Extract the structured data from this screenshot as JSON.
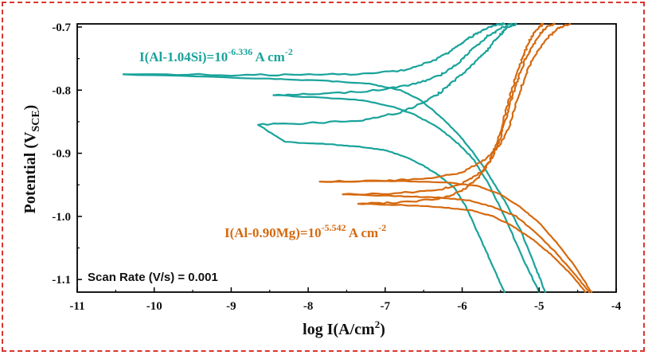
{
  "chart_data": {
    "type": "line",
    "title": "",
    "xlabel": "log I(A/cm",
    "xlabel_sup": "2",
    "xlabel_tail": ")",
    "ylabel_main": "Potential (V",
    "ylabel_sub": "SCE",
    "ylabel_tail": ")",
    "xlim": [
      -11,
      -4
    ],
    "ylim": [
      -1.12,
      -0.695
    ],
    "x_ticks": [
      "-11",
      "-10",
      "-9",
      "-8",
      "-7",
      "-6",
      "-5",
      "-4"
    ],
    "y_ticks": [
      "-0.7",
      "-0.8",
      "-0.9",
      "-1.0",
      "-1.1"
    ],
    "grid": false,
    "annotations": {
      "si": {
        "prefix": "I(Al-1.04Si)=10",
        "sup": "-6.336",
        "suffix": " A cm",
        "sup2": "-2"
      },
      "mg": {
        "prefix": "I(Al-0.90Mg)=10",
        "sup": "-5.542",
        "suffix": " A cm",
        "sup2": "-2"
      },
      "scan_rate": "Scan Rate (V/s) = 0.001"
    },
    "series": [
      {
        "group": "Al-1.04Si",
        "color": "#1aa39b",
        "cathodic": [
          [
            -5.45,
            -1.12
          ],
          [
            -5.6,
            -1.08
          ],
          [
            -5.78,
            -1.03
          ],
          [
            -5.95,
            -0.985
          ],
          [
            -6.1,
            -0.955
          ],
          [
            -6.3,
            -0.935
          ],
          [
            -6.5,
            -0.92
          ],
          [
            -6.75,
            -0.905
          ],
          [
            -7.0,
            -0.895
          ],
          [
            -7.3,
            -0.89
          ],
          [
            -7.7,
            -0.886
          ],
          [
            -8.3,
            -0.882
          ],
          [
            -8.65,
            -0.855
          ]
        ],
        "anodic": [
          [
            -8.65,
            -0.855
          ],
          [
            -8.0,
            -0.852
          ],
          [
            -7.3,
            -0.848
          ],
          [
            -6.8,
            -0.835
          ],
          [
            -6.5,
            -0.82
          ],
          [
            -6.3,
            -0.805
          ],
          [
            -6.15,
            -0.79
          ],
          [
            -6.0,
            -0.775
          ],
          [
            -5.85,
            -0.758
          ],
          [
            -5.7,
            -0.74
          ],
          [
            -5.6,
            -0.725
          ],
          [
            -5.5,
            -0.712
          ],
          [
            -5.4,
            -0.7
          ],
          [
            -5.3,
            -0.695
          ]
        ]
      },
      {
        "group": "Al-1.04Si",
        "color": "#1aa39b",
        "cathodic": [
          [
            -5.0,
            -1.12
          ],
          [
            -5.2,
            -1.07
          ],
          [
            -5.45,
            -1.0
          ],
          [
            -5.65,
            -0.95
          ],
          [
            -5.85,
            -0.91
          ],
          [
            -6.05,
            -0.885
          ],
          [
            -6.3,
            -0.86
          ],
          [
            -6.6,
            -0.84
          ],
          [
            -6.9,
            -0.826
          ],
          [
            -7.3,
            -0.816
          ],
          [
            -7.8,
            -0.812
          ],
          [
            -8.45,
            -0.808
          ]
        ],
        "anodic": [
          [
            -8.45,
            -0.808
          ],
          [
            -7.8,
            -0.806
          ],
          [
            -7.1,
            -0.8
          ],
          [
            -6.6,
            -0.79
          ],
          [
            -6.3,
            -0.777
          ],
          [
            -6.1,
            -0.762
          ],
          [
            -5.95,
            -0.745
          ],
          [
            -5.8,
            -0.728
          ],
          [
            -5.65,
            -0.713
          ],
          [
            -5.5,
            -0.702
          ],
          [
            -5.35,
            -0.695
          ]
        ]
      },
      {
        "group": "Al-1.04Si",
        "color": "#1aa39b",
        "cathodic": [
          [
            -4.92,
            -1.12
          ],
          [
            -5.05,
            -1.08
          ],
          [
            -5.25,
            -1.02
          ],
          [
            -5.45,
            -0.975
          ],
          [
            -5.65,
            -0.935
          ],
          [
            -5.85,
            -0.9
          ],
          [
            -6.05,
            -0.87
          ],
          [
            -6.3,
            -0.84
          ],
          [
            -6.55,
            -0.815
          ],
          [
            -6.8,
            -0.8
          ],
          [
            -7.2,
            -0.79
          ],
          [
            -7.8,
            -0.785
          ],
          [
            -8.5,
            -0.782
          ],
          [
            -10.4,
            -0.775
          ]
        ],
        "anodic": [
          [
            -10.4,
            -0.775
          ],
          [
            -9.0,
            -0.776
          ],
          [
            -8.0,
            -0.776
          ],
          [
            -7.2,
            -0.774
          ],
          [
            -6.7,
            -0.767
          ],
          [
            -6.35,
            -0.752
          ],
          [
            -6.15,
            -0.738
          ],
          [
            -6.0,
            -0.725
          ],
          [
            -5.85,
            -0.713
          ],
          [
            -5.7,
            -0.703
          ],
          [
            -5.55,
            -0.697
          ],
          [
            -5.45,
            -0.695
          ]
        ]
      },
      {
        "group": "Al-0.90Mg",
        "color": "#d56a10",
        "cathodic": [
          [
            -4.4,
            -1.12
          ],
          [
            -4.6,
            -1.09
          ],
          [
            -4.85,
            -1.06
          ],
          [
            -5.1,
            -1.035
          ],
          [
            -5.35,
            -1.015
          ],
          [
            -5.6,
            -1.0
          ],
          [
            -5.9,
            -0.99
          ],
          [
            -6.3,
            -0.985
          ],
          [
            -6.8,
            -0.982
          ],
          [
            -7.35,
            -0.98
          ]
        ],
        "anodic": [
          [
            -7.35,
            -0.98
          ],
          [
            -6.8,
            -0.978
          ],
          [
            -6.3,
            -0.972
          ],
          [
            -6.0,
            -0.96
          ],
          [
            -5.8,
            -0.94
          ],
          [
            -5.65,
            -0.915
          ],
          [
            -5.55,
            -0.885
          ],
          [
            -5.47,
            -0.85
          ],
          [
            -5.4,
            -0.82
          ],
          [
            -5.33,
            -0.79
          ],
          [
            -5.25,
            -0.76
          ],
          [
            -5.17,
            -0.735
          ],
          [
            -5.1,
            -0.715
          ],
          [
            -5.0,
            -0.7
          ],
          [
            -4.95,
            -0.695
          ]
        ]
      },
      {
        "group": "Al-0.90Mg",
        "color": "#d56a10",
        "cathodic": [
          [
            -4.35,
            -1.12
          ],
          [
            -4.55,
            -1.09
          ],
          [
            -4.8,
            -1.055
          ],
          [
            -5.05,
            -1.025
          ],
          [
            -5.3,
            -1.0
          ],
          [
            -5.6,
            -0.985
          ],
          [
            -5.9,
            -0.975
          ],
          [
            -6.3,
            -0.97
          ],
          [
            -6.8,
            -0.968
          ],
          [
            -7.55,
            -0.965
          ]
        ],
        "anodic": [
          [
            -7.55,
            -0.965
          ],
          [
            -6.8,
            -0.963
          ],
          [
            -6.3,
            -0.958
          ],
          [
            -6.0,
            -0.948
          ],
          [
            -5.75,
            -0.93
          ],
          [
            -5.6,
            -0.905
          ],
          [
            -5.5,
            -0.875
          ],
          [
            -5.42,
            -0.84
          ],
          [
            -5.35,
            -0.81
          ],
          [
            -5.27,
            -0.78
          ],
          [
            -5.18,
            -0.752
          ],
          [
            -5.08,
            -0.728
          ],
          [
            -4.98,
            -0.71
          ],
          [
            -4.88,
            -0.698
          ],
          [
            -4.8,
            -0.695
          ]
        ]
      },
      {
        "group": "Al-0.90Mg",
        "color": "#d56a10",
        "cathodic": [
          [
            -4.32,
            -1.12
          ],
          [
            -4.5,
            -1.085
          ],
          [
            -4.75,
            -1.045
          ],
          [
            -5.0,
            -1.01
          ],
          [
            -5.25,
            -0.985
          ],
          [
            -5.5,
            -0.965
          ],
          [
            -5.8,
            -0.952
          ],
          [
            -6.2,
            -0.946
          ],
          [
            -6.8,
            -0.944
          ],
          [
            -7.85,
            -0.945
          ]
        ],
        "anodic": [
          [
            -7.85,
            -0.945
          ],
          [
            -7.0,
            -0.944
          ],
          [
            -6.4,
            -0.94
          ],
          [
            -6.0,
            -0.93
          ],
          [
            -5.7,
            -0.91
          ],
          [
            -5.5,
            -0.885
          ],
          [
            -5.38,
            -0.855
          ],
          [
            -5.3,
            -0.82
          ],
          [
            -5.22,
            -0.79
          ],
          [
            -5.12,
            -0.76
          ],
          [
            -5.0,
            -0.735
          ],
          [
            -4.88,
            -0.715
          ],
          [
            -4.75,
            -0.702
          ],
          [
            -4.6,
            -0.695
          ]
        ]
      }
    ]
  }
}
